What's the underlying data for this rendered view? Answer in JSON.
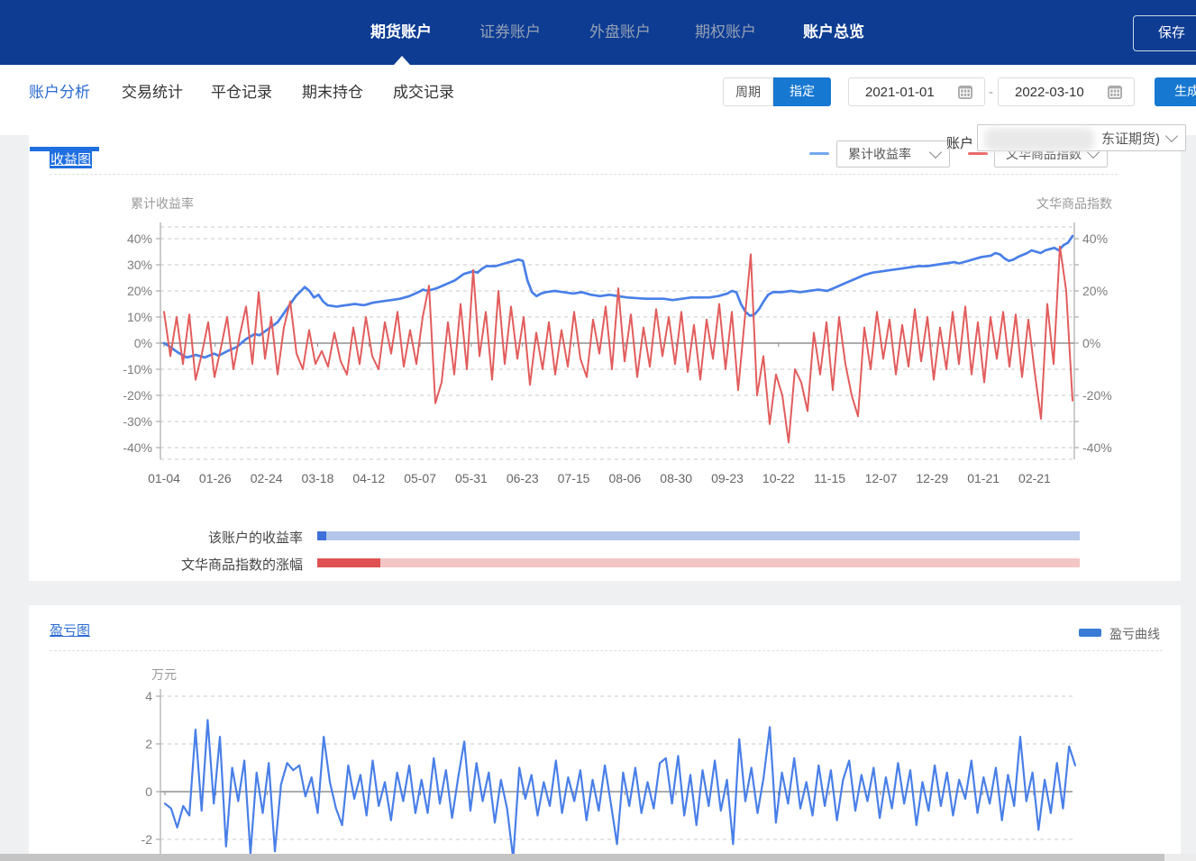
{
  "topnav": {
    "tabs": [
      {
        "label": "期货账户",
        "active": true
      },
      {
        "label": "证券账户",
        "active": false
      },
      {
        "label": "外盘账户",
        "active": false
      },
      {
        "label": "期权账户",
        "active": false
      },
      {
        "label": "账户总览",
        "active": true
      }
    ],
    "save_label": "保存"
  },
  "subnav": {
    "tabs": [
      {
        "label": "账户分析",
        "active": true
      },
      {
        "label": "交易统计",
        "active": false
      },
      {
        "label": "平仓记录",
        "active": false
      },
      {
        "label": "期末持仓",
        "active": false
      },
      {
        "label": "成交记录",
        "active": false
      }
    ],
    "period_label": "周期",
    "assign_label": "指定",
    "date_start": "2021-01-01",
    "range_sep": "-",
    "date_end": "2022-03-10",
    "generate_label": "生成"
  },
  "account": {
    "label": "账户",
    "value_visible": "东证期货)"
  },
  "income": {
    "title": "收益图",
    "select_left": "累计收益率",
    "select_right": "文华商品指数",
    "axis_left_title": "累计收益率",
    "axis_right_title": "文华商品指数",
    "legend_left_color": "#74a8ee",
    "legend_right_color": "#e86a6a",
    "scroll_rows": [
      {
        "label": "该账户的收益率",
        "thumb_color": "#3f6fd8",
        "track_color": "#b3c6ea"
      },
      {
        "label": "文华商品指数的涨幅",
        "thumb_color": "#e05252",
        "track_color": "#f3c6c6"
      }
    ]
  },
  "pnl": {
    "title": "盈亏图",
    "legend_label": "盈亏曲线",
    "legend_color": "#3a7bd5",
    "unit": "万元"
  },
  "chart_data": [
    {
      "type": "line",
      "title": "收益图",
      "x_tick_labels": [
        "01-04",
        "01-26",
        "02-24",
        "03-18",
        "04-12",
        "05-07",
        "05-31",
        "06-23",
        "07-15",
        "08-06",
        "08-30",
        "09-23",
        "10-22",
        "11-15",
        "12-07",
        "12-29",
        "01-21",
        "02-21"
      ],
      "y_left": {
        "label": "累计收益率",
        "ticks": [
          "40%",
          "30%",
          "20%",
          "10%",
          "0%",
          "-10%",
          "-20%",
          "-30%",
          "-40%"
        ]
      },
      "y_right": {
        "label": "文华商品指数",
        "ticks": [
          "40%",
          "20%",
          "0%",
          "-20%",
          "-40%"
        ]
      },
      "ylim": [
        -44.5,
        44.5
      ],
      "grid": "dashed",
      "series": [
        {
          "name": "累计收益率",
          "color": "#497fe8",
          "width": 2.7,
          "points": [
            [
              0,
              0
            ],
            [
              0.005,
              -1
            ],
            [
              0.015,
              -3.5
            ],
            [
              0.025,
              -5.5
            ],
            [
              0.035,
              -4.5
            ],
            [
              0.045,
              -5.5
            ],
            [
              0.055,
              -4
            ],
            [
              0.06,
              -4.8
            ],
            [
              0.07,
              -3
            ],
            [
              0.08,
              -1.5
            ],
            [
              0.09,
              1.5
            ],
            [
              0.1,
              3.5
            ],
            [
              0.105,
              3
            ],
            [
              0.115,
              5.5
            ],
            [
              0.125,
              8
            ],
            [
              0.135,
              13
            ],
            [
              0.145,
              18
            ],
            [
              0.155,
              21.5
            ],
            [
              0.16,
              20
            ],
            [
              0.165,
              17.5
            ],
            [
              0.17,
              18.5
            ],
            [
              0.175,
              16
            ],
            [
              0.18,
              14.5
            ],
            [
              0.19,
              14
            ],
            [
              0.2,
              14.5
            ],
            [
              0.21,
              15
            ],
            [
              0.22,
              14.5
            ],
            [
              0.23,
              15.5
            ],
            [
              0.24,
              16
            ],
            [
              0.25,
              16.5
            ],
            [
              0.26,
              17
            ],
            [
              0.27,
              18
            ],
            [
              0.28,
              19.5
            ],
            [
              0.285,
              20.5
            ],
            [
              0.29,
              20
            ],
            [
              0.3,
              21
            ],
            [
              0.31,
              22.5
            ],
            [
              0.32,
              24
            ],
            [
              0.33,
              26.5
            ],
            [
              0.34,
              27.5
            ],
            [
              0.345,
              27
            ],
            [
              0.35,
              28.5
            ],
            [
              0.355,
              29.5
            ],
            [
              0.365,
              29.5
            ],
            [
              0.375,
              30.5
            ],
            [
              0.385,
              31.5
            ],
            [
              0.39,
              32
            ],
            [
              0.395,
              31.5
            ],
            [
              0.4,
              24
            ],
            [
              0.405,
              19.5
            ],
            [
              0.41,
              18
            ],
            [
              0.415,
              19
            ],
            [
              0.42,
              19.5
            ],
            [
              0.43,
              20
            ],
            [
              0.44,
              19.5
            ],
            [
              0.45,
              19
            ],
            [
              0.46,
              19.5
            ],
            [
              0.47,
              18.5
            ],
            [
              0.48,
              18
            ],
            [
              0.49,
              18.5
            ],
            [
              0.5,
              18
            ],
            [
              0.51,
              17.5
            ],
            [
              0.53,
              17
            ],
            [
              0.55,
              17
            ],
            [
              0.56,
              16.5
            ],
            [
              0.58,
              17.5
            ],
            [
              0.6,
              17.5
            ],
            [
              0.61,
              18
            ],
            [
              0.62,
              19
            ],
            [
              0.625,
              20
            ],
            [
              0.63,
              19.5
            ],
            [
              0.635,
              15
            ],
            [
              0.64,
              12
            ],
            [
              0.645,
              10.5
            ],
            [
              0.65,
              11
            ],
            [
              0.655,
              13
            ],
            [
              0.66,
              16
            ],
            [
              0.665,
              18.5
            ],
            [
              0.67,
              19.5
            ],
            [
              0.68,
              19.5
            ],
            [
              0.69,
              20
            ],
            [
              0.7,
              19.5
            ],
            [
              0.71,
              20
            ],
            [
              0.72,
              20.5
            ],
            [
              0.73,
              20
            ],
            [
              0.74,
              21.5
            ],
            [
              0.75,
              23
            ],
            [
              0.76,
              24.5
            ],
            [
              0.77,
              26
            ],
            [
              0.78,
              27
            ],
            [
              0.79,
              27.5
            ],
            [
              0.8,
              28
            ],
            [
              0.81,
              28.5
            ],
            [
              0.82,
              29
            ],
            [
              0.83,
              29.5
            ],
            [
              0.84,
              29.5
            ],
            [
              0.85,
              30
            ],
            [
              0.86,
              30.5
            ],
            [
              0.87,
              31
            ],
            [
              0.875,
              30.5
            ],
            [
              0.885,
              31.5
            ],
            [
              0.9,
              33
            ],
            [
              0.91,
              33.5
            ],
            [
              0.915,
              34.5
            ],
            [
              0.92,
              34
            ],
            [
              0.925,
              32.5
            ],
            [
              0.93,
              31.5
            ],
            [
              0.935,
              32
            ],
            [
              0.94,
              33
            ],
            [
              0.95,
              34.5
            ],
            [
              0.955,
              35.5
            ],
            [
              0.96,
              35
            ],
            [
              0.965,
              34.5
            ],
            [
              0.97,
              35.5
            ],
            [
              0.975,
              36
            ],
            [
              0.98,
              36.5
            ],
            [
              0.985,
              35.5
            ],
            [
              0.99,
              37.5
            ],
            [
              0.995,
              38.5
            ],
            [
              1,
              41
            ]
          ]
        },
        {
          "name": "文华商品指数",
          "color": "#e25d5d",
          "width": 2,
          "values": [
            12,
            -5,
            10,
            -8,
            11,
            -14,
            -4,
            8,
            -13,
            -2,
            10,
            -10,
            3,
            14,
            -8,
            19.5,
            -6,
            10,
            -12,
            6,
            16,
            -4,
            -10,
            5,
            -8,
            -3,
            -9,
            4,
            -7,
            -12,
            6,
            -8,
            10,
            -5,
            -10,
            8,
            -4,
            12,
            -9,
            5,
            -8,
            10,
            22,
            -23,
            -15,
            8,
            -12,
            15,
            -10,
            28,
            -5,
            12,
            -14,
            20,
            -8,
            14,
            -6,
            10,
            -16,
            4,
            -10,
            8,
            -12,
            5,
            -9,
            12,
            -6,
            -13,
            9,
            -4,
            14,
            -10,
            21,
            -7,
            11,
            -13,
            6,
            -9,
            13,
            -5,
            10,
            -8,
            12,
            -11,
            7,
            -14,
            9,
            -6,
            15,
            -10,
            12,
            -18,
            8,
            34,
            -20,
            -5,
            -31,
            -12,
            -20,
            -38,
            -10,
            -15,
            -26,
            4,
            -12,
            8,
            -18,
            10,
            -8,
            -20,
            -28,
            6,
            -10,
            12,
            -6,
            9,
            -12,
            7,
            -9,
            13,
            -7,
            10,
            -14,
            6,
            -10,
            12,
            -8,
            14,
            -12,
            8,
            -15,
            10,
            -6,
            12,
            -9,
            11,
            -13,
            9,
            -11,
            -29,
            15,
            -8,
            37,
            20,
            -22
          ]
        }
      ]
    },
    {
      "type": "line",
      "title": "盈亏图",
      "ylabel": "万元",
      "y_left": {
        "label": "万元",
        "ticks": [
          "4",
          "2",
          "0",
          "-2"
        ]
      },
      "ylim": [
        -2.9,
        4.5
      ],
      "grid": "dashed",
      "series": [
        {
          "name": "盈亏曲线",
          "color": "#497fe8",
          "width": 2.2,
          "values": [
            -0.5,
            -0.7,
            -1.5,
            -0.6,
            -1.0,
            2.6,
            -0.8,
            3.0,
            -0.5,
            2.3,
            -2.3,
            1.0,
            -0.4,
            1.3,
            -2.6,
            0.8,
            -0.9,
            1.2,
            -2.5,
            0.3,
            1.2,
            0.9,
            1.1,
            -0.2,
            0.6,
            -0.9,
            2.3,
            0.4,
            -0.7,
            -1.4,
            1.1,
            -0.3,
            0.7,
            -1.0,
            1.3,
            -0.6,
            0.4,
            -1.2,
            0.8,
            -0.4,
            1.1,
            -0.9,
            0.5,
            -0.9,
            1.4,
            -0.5,
            0.9,
            -1.1,
            0.6,
            2.1,
            -0.8,
            1.2,
            -0.4,
            0.8,
            -1.3,
            0.5,
            -0.7,
            -2.8,
            1.0,
            -0.3,
            0.7,
            -1.0,
            0.4,
            -0.6,
            1.3,
            -0.9,
            0.6,
            -0.4,
            0.9,
            -1.2,
            0.5,
            -0.8,
            1.1,
            -0.5,
            -2.2,
            0.8,
            -0.6,
            1.0,
            -0.9,
            0.4,
            -0.7,
            1.2,
            1.4,
            -0.5,
            1.5,
            -1.0,
            0.7,
            -1.4,
            0.9,
            -0.6,
            1.3,
            -0.8,
            0.5,
            -2.2,
            2.2,
            -0.4,
            1.0,
            -0.9,
            0.6,
            2.7,
            -1.3,
            0.8,
            -0.5,
            1.4,
            -0.7,
            0.4,
            -1.0,
            1.1,
            -0.6,
            0.9,
            -1.2,
            0.5,
            1.3,
            -0.8,
            0.7,
            -0.4,
            1.0,
            -1.1,
            0.6,
            -0.7,
            1.2,
            -0.5,
            0.9,
            -1.4,
            0.4,
            -0.8,
            1.1,
            -0.6,
            0.8,
            -1.0,
            0.5,
            -0.3,
            1.3,
            -0.9,
            0.6,
            -0.5,
            1.0,
            -1.2,
            0.7,
            -0.6,
            2.3,
            -0.4,
            0.8,
            -1.6,
            0.5,
            -0.9,
            1.2,
            -0.7,
            1.9,
            1.1
          ]
        }
      ]
    }
  ]
}
